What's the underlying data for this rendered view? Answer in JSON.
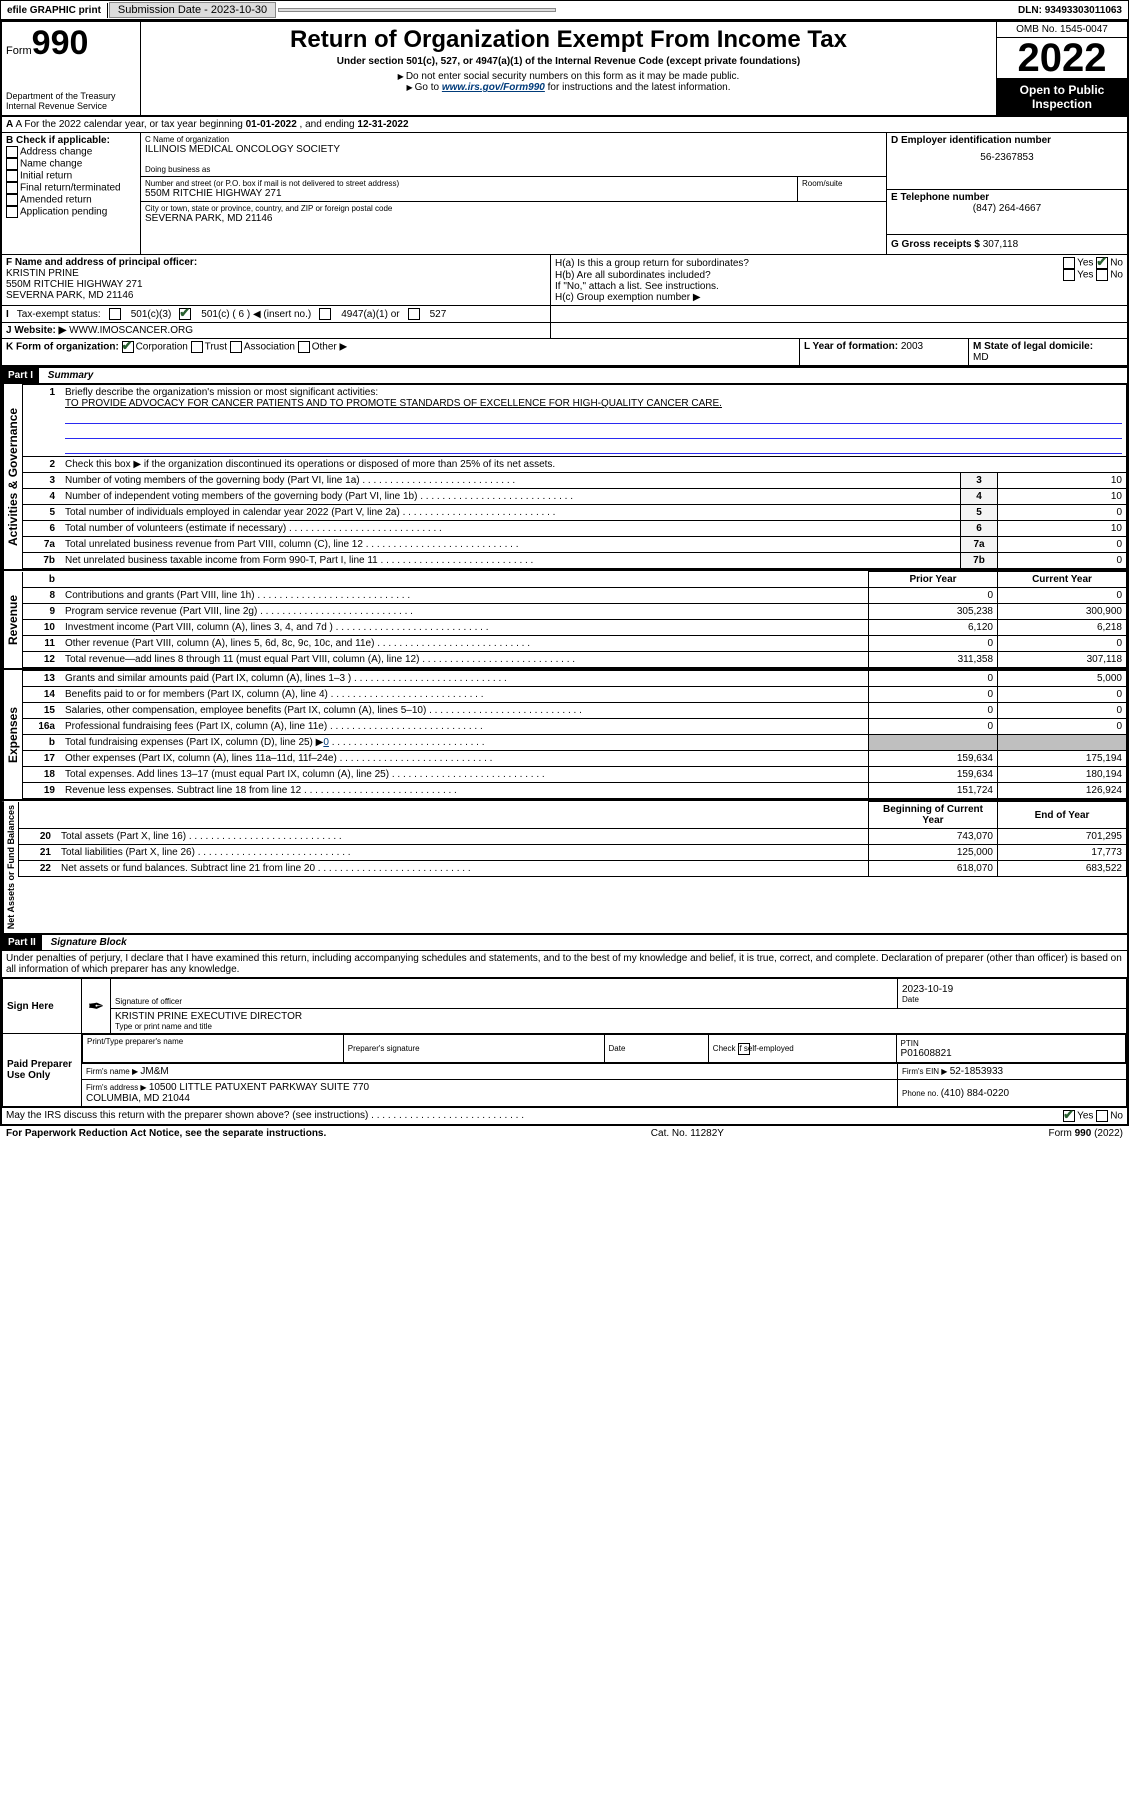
{
  "topbar": {
    "efile": "efile GRAPHIC print",
    "sub_label": "Submission Date - ",
    "sub_date": "2023-10-30",
    "dln_label": "DLN: ",
    "dln": "93493303011063"
  },
  "header": {
    "form_pre": "Form",
    "form_num": "990",
    "dept": "Department of the Treasury",
    "irs": "Internal Revenue Service",
    "title": "Return of Organization Exempt From Income Tax",
    "sub": "Under section 501(c), 527, or 4947(a)(1) of the Internal Revenue Code (except private foundations)",
    "note1": "Do not enter social security numbers on this form as it may be made public.",
    "note2_pre": "Go to ",
    "note2_link": "www.irs.gov/Form990",
    "note2_post": " for instructions and the latest information.",
    "omb": "OMB No. 1545-0047",
    "year": "2022",
    "open": "Open to Public Inspection"
  },
  "rowA": {
    "label": "A For the 2022 calendar year, or tax year beginning ",
    "begin": "01-01-2022",
    "mid": "   , and ending ",
    "end": "12-31-2022"
  },
  "boxB": {
    "title": "B Check if applicable:",
    "opts": [
      "Address change",
      "Name change",
      "Initial return",
      "Final return/terminated",
      "Amended return",
      "Application pending"
    ]
  },
  "boxC": {
    "label_name": "C Name of organization",
    "name": "ILLINOIS MEDICAL ONCOLOGY SOCIETY",
    "dba_label": "Doing business as",
    "dba": "",
    "street_label": "Number and street (or P.O. box if mail is not delivered to street address)",
    "room_label": "Room/suite",
    "street": "550M RITCHIE HIGHWAY 271",
    "city_label": "City or town, state or province, country, and ZIP or foreign postal code",
    "city": "SEVERNA PARK, MD  21146"
  },
  "boxD": {
    "label": "D Employer identification number",
    "ein": "56-2367853"
  },
  "boxE": {
    "label": "E Telephone number",
    "phone": "(847) 264-4667"
  },
  "boxG": {
    "label": "G Gross receipts $ ",
    "val": "307,118"
  },
  "boxF": {
    "label": "F Name and address of principal officer:",
    "name": "KRISTIN PRINE",
    "addr1": "550M RITCHIE HIGHWAY 271",
    "addr2": "SEVERNA PARK, MD  21146"
  },
  "boxH": {
    "a_label": "H(a)  Is this a group return for subordinates?",
    "b_label": "H(b)  Are all subordinates included?",
    "b_note": "If \"No,\" attach a list. See instructions.",
    "c_label": "H(c)  Group exemption number ▶",
    "yes": "Yes",
    "no": "No"
  },
  "rowI": {
    "label": "Tax-exempt status:",
    "c3": "501(c)(3)",
    "c_open": "501(c) ( ",
    "c_num": "6",
    "c_close": " ) ◀ (insert no.)",
    "a1": "4947(a)(1) or",
    "s527": "527"
  },
  "rowJ": {
    "label": "Website: ▶ ",
    "val": "WWW.IMOSCANCER.ORG"
  },
  "rowK": {
    "label": "K Form of organization:",
    "corp": "Corporation",
    "trust": "Trust",
    "assoc": "Association",
    "other": "Other ▶"
  },
  "rowL": {
    "label": "L Year of formation: ",
    "val": "2003"
  },
  "rowM": {
    "label": "M State of legal domicile:",
    "val": "MD"
  },
  "partI": {
    "bar": "Part I",
    "title": "Summary",
    "line1_label": "Briefly describe the organization's mission or most significant activities:",
    "line1_val": "TO PROVIDE ADVOCACY FOR CANCER PATIENTS AND TO PROMOTE STANDARDS OF EXCELLENCE FOR HIGH-QUALITY CANCER CARE.",
    "line2": "Check this box ▶      if the organization discontinued its operations or disposed of more than 25% of its net assets.",
    "vlabel_gov": "Activities & Governance",
    "vlabel_rev": "Revenue",
    "vlabel_exp": "Expenses",
    "vlabel_net": "Net Assets or Fund Balances",
    "col_prior": "Prior Year",
    "col_curr": "Current Year",
    "col_begin": "Beginning of Current Year",
    "col_end": "End of Year",
    "rows_top": [
      {
        "n": "3",
        "d": "Number of voting members of the governing body (Part VI, line 1a)",
        "v": "10"
      },
      {
        "n": "4",
        "d": "Number of independent voting members of the governing body (Part VI, line 1b)",
        "v": "10"
      },
      {
        "n": "5",
        "d": "Total number of individuals employed in calendar year 2022 (Part V, line 2a)",
        "v": "0"
      },
      {
        "n": "6",
        "d": "Total number of volunteers (estimate if necessary)",
        "v": "10"
      },
      {
        "n": "7a",
        "d": "Total unrelated business revenue from Part VIII, column (C), line 12",
        "v": "0"
      },
      {
        "n": "7b",
        "d": "Net unrelated business taxable income from Form 990-T, Part I, line 11",
        "v": "0"
      }
    ],
    "rows_rev": [
      {
        "n": "8",
        "d": "Contributions and grants (Part VIII, line 1h)",
        "p": "0",
        "c": "0"
      },
      {
        "n": "9",
        "d": "Program service revenue (Part VIII, line 2g)",
        "p": "305,238",
        "c": "300,900"
      },
      {
        "n": "10",
        "d": "Investment income (Part VIII, column (A), lines 3, 4, and 7d )",
        "p": "6,120",
        "c": "6,218"
      },
      {
        "n": "11",
        "d": "Other revenue (Part VIII, column (A), lines 5, 6d, 8c, 9c, 10c, and 11e)",
        "p": "0",
        "c": "0"
      },
      {
        "n": "12",
        "d": "Total revenue—add lines 8 through 11 (must equal Part VIII, column (A), line 12)",
        "p": "311,358",
        "c": "307,118"
      }
    ],
    "rows_exp": [
      {
        "n": "13",
        "d": "Grants and similar amounts paid (Part IX, column (A), lines 1–3 )",
        "p": "0",
        "c": "5,000"
      },
      {
        "n": "14",
        "d": "Benefits paid to or for members (Part IX, column (A), line 4)",
        "p": "0",
        "c": "0"
      },
      {
        "n": "15",
        "d": "Salaries, other compensation, employee benefits (Part IX, column (A), lines 5–10)",
        "p": "0",
        "c": "0"
      },
      {
        "n": "16a",
        "d": "Professional fundraising fees (Part IX, column (A), line 11e)",
        "p": "0",
        "c": "0"
      }
    ],
    "row16b": {
      "n": "b",
      "d": "Total fundraising expenses (Part IX, column (D), line 25) ▶",
      "v": "0"
    },
    "rows_exp2": [
      {
        "n": "17",
        "d": "Other expenses (Part IX, column (A), lines 11a–11d, 11f–24e)",
        "p": "159,634",
        "c": "175,194"
      },
      {
        "n": "18",
        "d": "Total expenses. Add lines 13–17 (must equal Part IX, column (A), line 25)",
        "p": "159,634",
        "c": "180,194"
      },
      {
        "n": "19",
        "d": "Revenue less expenses. Subtract line 18 from line 12",
        "p": "151,724",
        "c": "126,924"
      }
    ],
    "rows_net": [
      {
        "n": "20",
        "d": "Total assets (Part X, line 16)",
        "p": "743,070",
        "c": "701,295"
      },
      {
        "n": "21",
        "d": "Total liabilities (Part X, line 26)",
        "p": "125,000",
        "c": "17,773"
      },
      {
        "n": "22",
        "d": "Net assets or fund balances. Subtract line 21 from line 20",
        "p": "618,070",
        "c": "683,522"
      }
    ]
  },
  "partII": {
    "bar": "Part II",
    "title": "Signature Block",
    "decl": "Under penalties of perjury, I declare that I have examined this return, including accompanying schedules and statements, and to the best of my knowledge and belief, it is true, correct, and complete. Declaration of preparer (other than officer) is based on all information of which preparer has any knowledge.",
    "sign_here": "Sign Here",
    "sig_officer_label": "Signature of officer",
    "date_label": "Date",
    "sig_date": "2023-10-19",
    "officer_name": "KRISTIN PRINE  EXECUTIVE DIRECTOR",
    "officer_type_label": "Type or print name and title",
    "paid": "Paid Preparer Use Only",
    "prep_name_label": "Print/Type preparer's name",
    "prep_sig_label": "Preparer's signature",
    "prep_date_label": "Date",
    "prep_check": "Check        if self-employed",
    "ptin_label": "PTIN",
    "ptin": "P01608821",
    "firm_name_label": "Firm's name   ▶ ",
    "firm_name": "JM&M",
    "firm_ein_label": "Firm's EIN ▶ ",
    "firm_ein": "52-1853933",
    "firm_addr_label": "Firm's address ▶ ",
    "firm_addr": "10500 LITTLE PATUXENT PARKWAY SUITE 770\nCOLUMBIA, MD  21044",
    "firm_phone_label": "Phone no. ",
    "firm_phone": "(410) 884-0220",
    "discuss": "May the IRS discuss this return with the preparer shown above? (see instructions)",
    "yes": "Yes",
    "no": "No"
  },
  "footer": {
    "left": "For Paperwork Reduction Act Notice, see the separate instructions.",
    "mid": "Cat. No. 11282Y",
    "right": "Form 990 (2022)"
  }
}
